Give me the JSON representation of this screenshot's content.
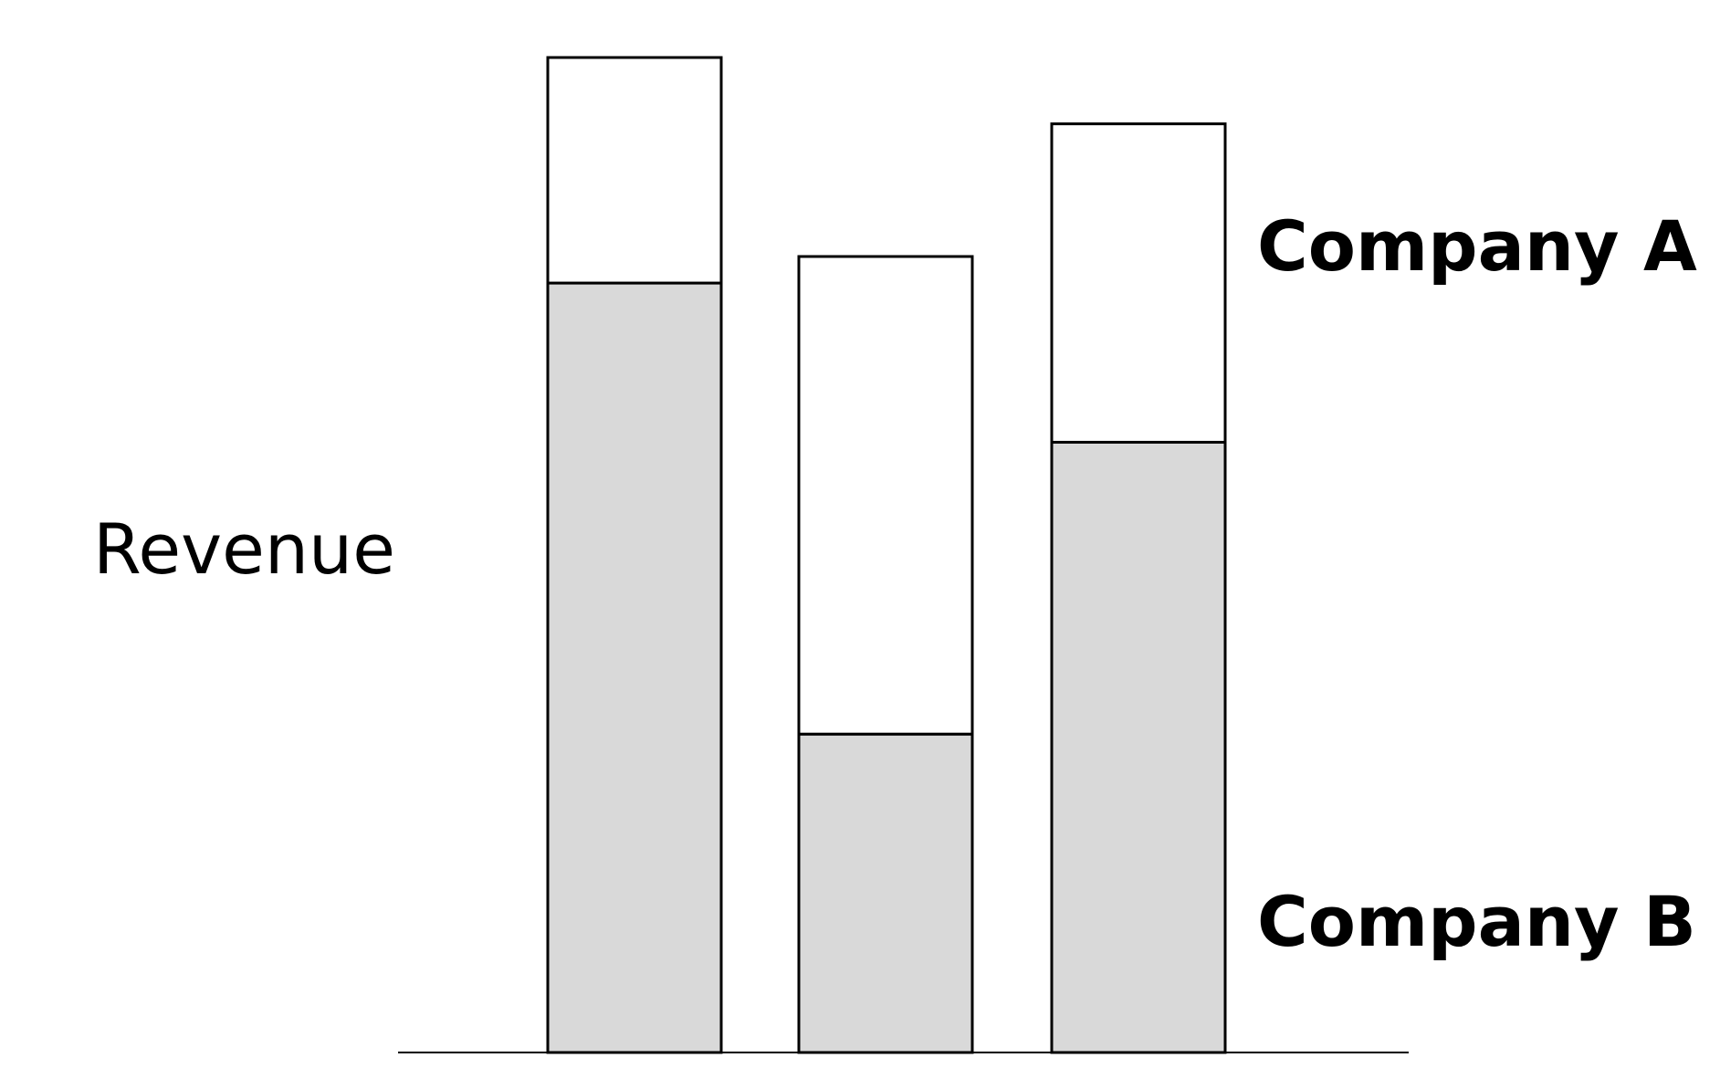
{
  "chart_data": {
    "type": "bar",
    "stacked": true,
    "title": "",
    "xlabel": "",
    "ylabel": "Revenue",
    "categories": [
      "",
      "",
      ""
    ],
    "series": [
      {
        "name": "Company B",
        "values": [
          58,
          24,
          46
        ],
        "color": "#d9d9d9"
      },
      {
        "name": "Company A",
        "values": [
          17,
          36,
          24
        ],
        "color": "#ffffff"
      }
    ],
    "ylim": [
      0,
      75
    ],
    "grid": false,
    "legend_placement": "right"
  }
}
